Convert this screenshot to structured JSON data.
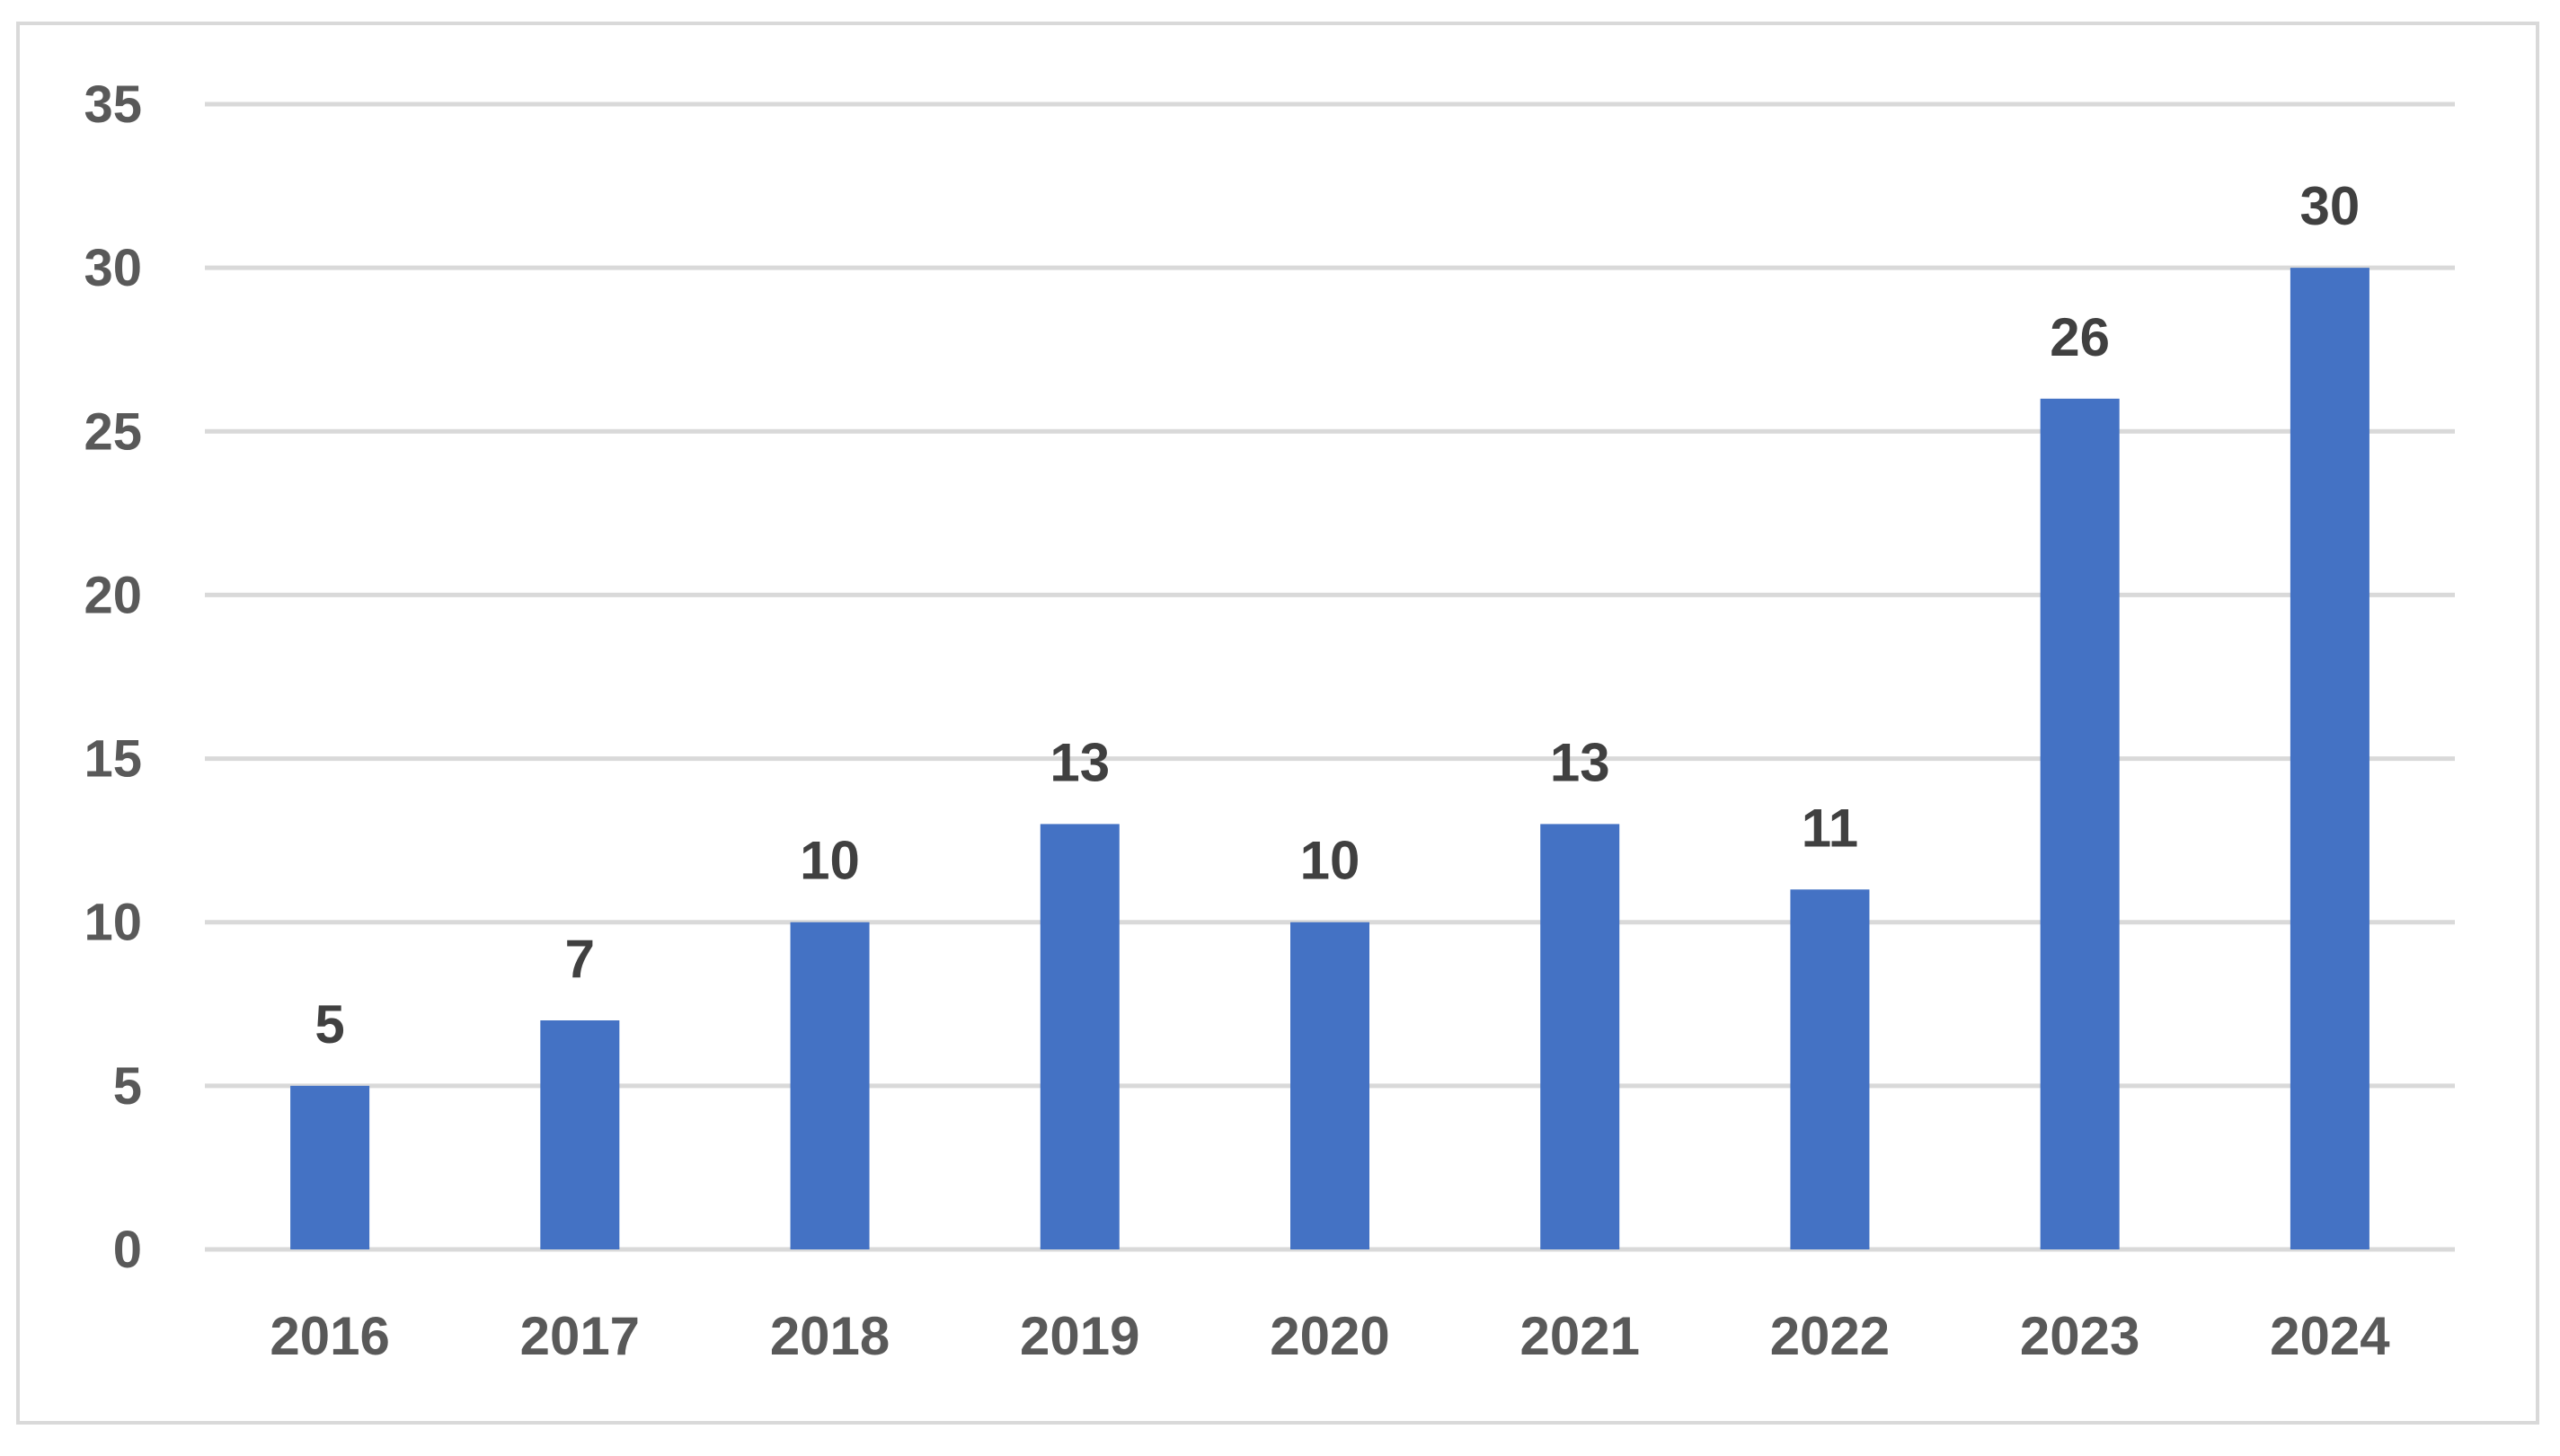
{
  "chart_data": {
    "type": "bar",
    "title": "",
    "xlabel": "",
    "ylabel": "",
    "categories": [
      "2016",
      "2017",
      "2018",
      "2019",
      "2020",
      "2021",
      "2022",
      "2023",
      "2024"
    ],
    "series": [
      {
        "values": [
          5,
          7,
          10,
          13,
          10,
          13,
          11,
          26,
          30
        ],
        "color": "#4472C4"
      }
    ],
    "ylim": [
      0,
      35
    ],
    "yticks": [
      "0",
      "5",
      "10",
      "15",
      "20",
      "25",
      "30",
      "35"
    ],
    "data_labels": true,
    "grid": true,
    "legend": "none"
  },
  "colors": {
    "bar": "#4472C4",
    "grid": "#D9D9D9",
    "tick_text": "#595959",
    "data_label_text": "#404040",
    "frame": "#D9D9D9"
  }
}
